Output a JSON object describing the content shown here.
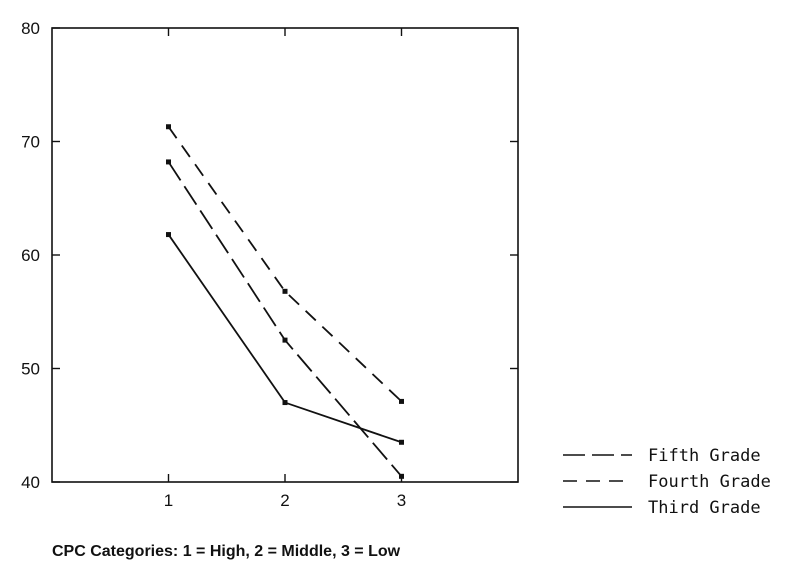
{
  "chart_data": {
    "type": "line",
    "title": "",
    "xlabel": "CPC Categories: 1 = High, 2 = Middle, 3 = Low",
    "ylabel": "",
    "x": [
      1,
      2,
      3
    ],
    "xlim": [
      0,
      4
    ],
    "ylim": [
      40,
      80
    ],
    "xticks": [
      "1",
      "2",
      "3"
    ],
    "yticks": [
      "40",
      "50",
      "60",
      "70",
      "80"
    ],
    "grid": false,
    "legend_position": "lower-right outside",
    "series": [
      {
        "name": "Fifth Grade",
        "values": [
          68.2,
          52.5,
          40.5
        ],
        "style": "long-dash",
        "color": "#111111"
      },
      {
        "name": "Fourth Grade",
        "values": [
          71.3,
          56.8,
          47.1
        ],
        "style": "dash",
        "color": "#111111"
      },
      {
        "name": "Third Grade",
        "values": [
          61.8,
          47.0,
          43.5
        ],
        "style": "solid",
        "color": "#111111"
      }
    ]
  }
}
